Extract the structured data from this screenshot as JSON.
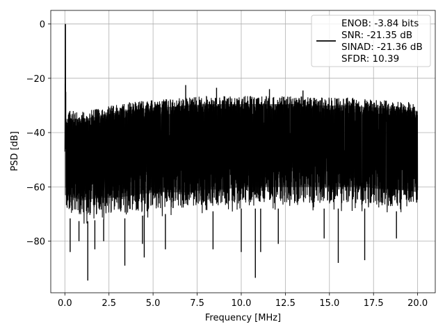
{
  "chart_data": {
    "type": "line",
    "title": "",
    "xlabel": "Frequency [MHz]",
    "ylabel": "PSD [dB]",
    "xlim": [
      -0.8,
      21.0
    ],
    "ylim": [
      -99,
      5
    ],
    "xticks": [
      0.0,
      2.5,
      5.0,
      7.5,
      10.0,
      12.5,
      15.0,
      17.5,
      20.0
    ],
    "xtick_labels": [
      "0.0",
      "2.5",
      "5.0",
      "7.5",
      "10.0",
      "12.5",
      "15.0",
      "17.5",
      "20.0"
    ],
    "yticks": [
      0,
      -20,
      -40,
      -60,
      -80
    ],
    "ytick_labels": [
      "0",
      "−20",
      "−40",
      "−60",
      "−80"
    ],
    "grid": true,
    "legend_position": "top-right",
    "line_color": "#000000",
    "series": [
      {
        "legend_lines": [
          "ENOB: -3.84 bits",
          "SNR: -21.35 dB",
          "SINAD: -21.36 dB",
          "SFDR: 10.39"
        ],
        "peak": {
          "x": 0.03,
          "y": 0
        },
        "upper_envelope": {
          "x": [
            0.0,
            0.1,
            0.5,
            1.0,
            2.0,
            3.0,
            4.0,
            5.0,
            6.0,
            7.0,
            8.0,
            9.0,
            10.0,
            11.0,
            12.0,
            13.0,
            14.0,
            15.0,
            16.0,
            17.0,
            18.0,
            19.0,
            20.0
          ],
          "y": [
            -31,
            -31,
            -31,
            -31,
            -30,
            -28.5,
            -27.5,
            -27,
            -26.5,
            -26,
            -25.5,
            -25.5,
            -25.5,
            -25.5,
            -25.5,
            -25.5,
            -26,
            -26,
            -26,
            -26.5,
            -27,
            -27.5,
            -28
          ]
        },
        "lower_envelope": {
          "x": [
            0.0,
            0.5,
            1.0,
            2.0,
            3.0,
            4.0,
            5.0,
            6.0,
            7.0,
            8.0,
            9.0,
            10.0,
            11.0,
            12.0,
            13.0,
            14.0,
            15.0,
            16.0,
            17.0,
            18.0,
            19.0,
            20.0
          ],
          "y": [
            -71,
            -72,
            -73,
            -72,
            -72,
            -71,
            -70,
            -70,
            -70,
            -69,
            -69,
            -68,
            -68,
            -68,
            -68,
            -68,
            -68,
            -68,
            -68,
            -69,
            -69,
            -70
          ]
        },
        "downward_spikes": [
          {
            "x": 0.3,
            "y": -84
          },
          {
            "x": 0.8,
            "y": -80
          },
          {
            "x": 1.3,
            "y": -94.5
          },
          {
            "x": 1.7,
            "y": -83
          },
          {
            "x": 2.2,
            "y": -80
          },
          {
            "x": 3.4,
            "y": -89
          },
          {
            "x": 4.4,
            "y": -81
          },
          {
            "x": 4.5,
            "y": -86
          },
          {
            "x": 5.7,
            "y": -83
          },
          {
            "x": 8.4,
            "y": -83
          },
          {
            "x": 10.0,
            "y": -84
          },
          {
            "x": 10.8,
            "y": -93.5
          },
          {
            "x": 11.1,
            "y": -84
          },
          {
            "x": 12.1,
            "y": -81
          },
          {
            "x": 14.7,
            "y": -79
          },
          {
            "x": 15.5,
            "y": -88
          },
          {
            "x": 17.0,
            "y": -87
          },
          {
            "x": 18.8,
            "y": -79
          }
        ],
        "upward_spikes": [
          {
            "x": 0.02,
            "y": -22
          },
          {
            "x": 0.05,
            "y": -25
          },
          {
            "x": 6.85,
            "y": -22.5
          },
          {
            "x": 8.6,
            "y": -23.5
          },
          {
            "x": 11.6,
            "y": -24
          },
          {
            "x": 13.5,
            "y": -24.5
          }
        ]
      }
    ]
  }
}
